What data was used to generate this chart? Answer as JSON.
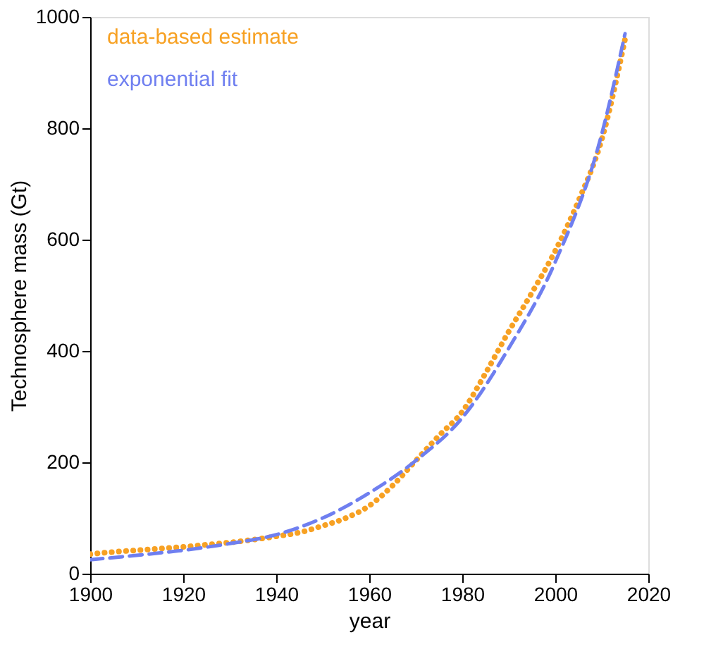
{
  "chart_data": {
    "type": "line",
    "xlabel": "year",
    "ylabel": "Technosphere mass (Gt)",
    "xlim": [
      1900,
      2020
    ],
    "xticks": [
      1900,
      1920,
      1940,
      1960,
      1980,
      2000,
      2020
    ],
    "ylim": [
      0,
      1000
    ],
    "yticks": [
      0,
      200,
      400,
      600,
      800,
      1000
    ],
    "grid": false,
    "legend": "top left",
    "series": [
      {
        "name": "data-based estimate",
        "color": "#f7a123",
        "line_style": "dotted",
        "x": [
          1900,
          1905,
          1910,
          1915,
          1920,
          1925,
          1930,
          1935,
          1940,
          1945,
          1950,
          1955,
          1960,
          1965,
          1970,
          1975,
          1980,
          1985,
          1990,
          1995,
          2000,
          2005,
          2010,
          2015
        ],
        "values": [
          35,
          39,
          42,
          45,
          48,
          52,
          56,
          61,
          67,
          74,
          86,
          100,
          122,
          158,
          203,
          248,
          291,
          360,
          435,
          505,
          580,
          670,
          780,
          960
        ]
      },
      {
        "name": "exponential fit",
        "color": "#6f7ff0",
        "line_style": "dashed",
        "x": [
          1900,
          1910,
          1920,
          1930,
          1940,
          1950,
          1960,
          1970,
          1980,
          1990,
          2000,
          2010,
          2015
        ],
        "values": [
          25,
          33,
          42,
          54,
          70,
          100,
          145,
          203,
          280,
          405,
          560,
          790,
          970
        ]
      }
    ]
  }
}
